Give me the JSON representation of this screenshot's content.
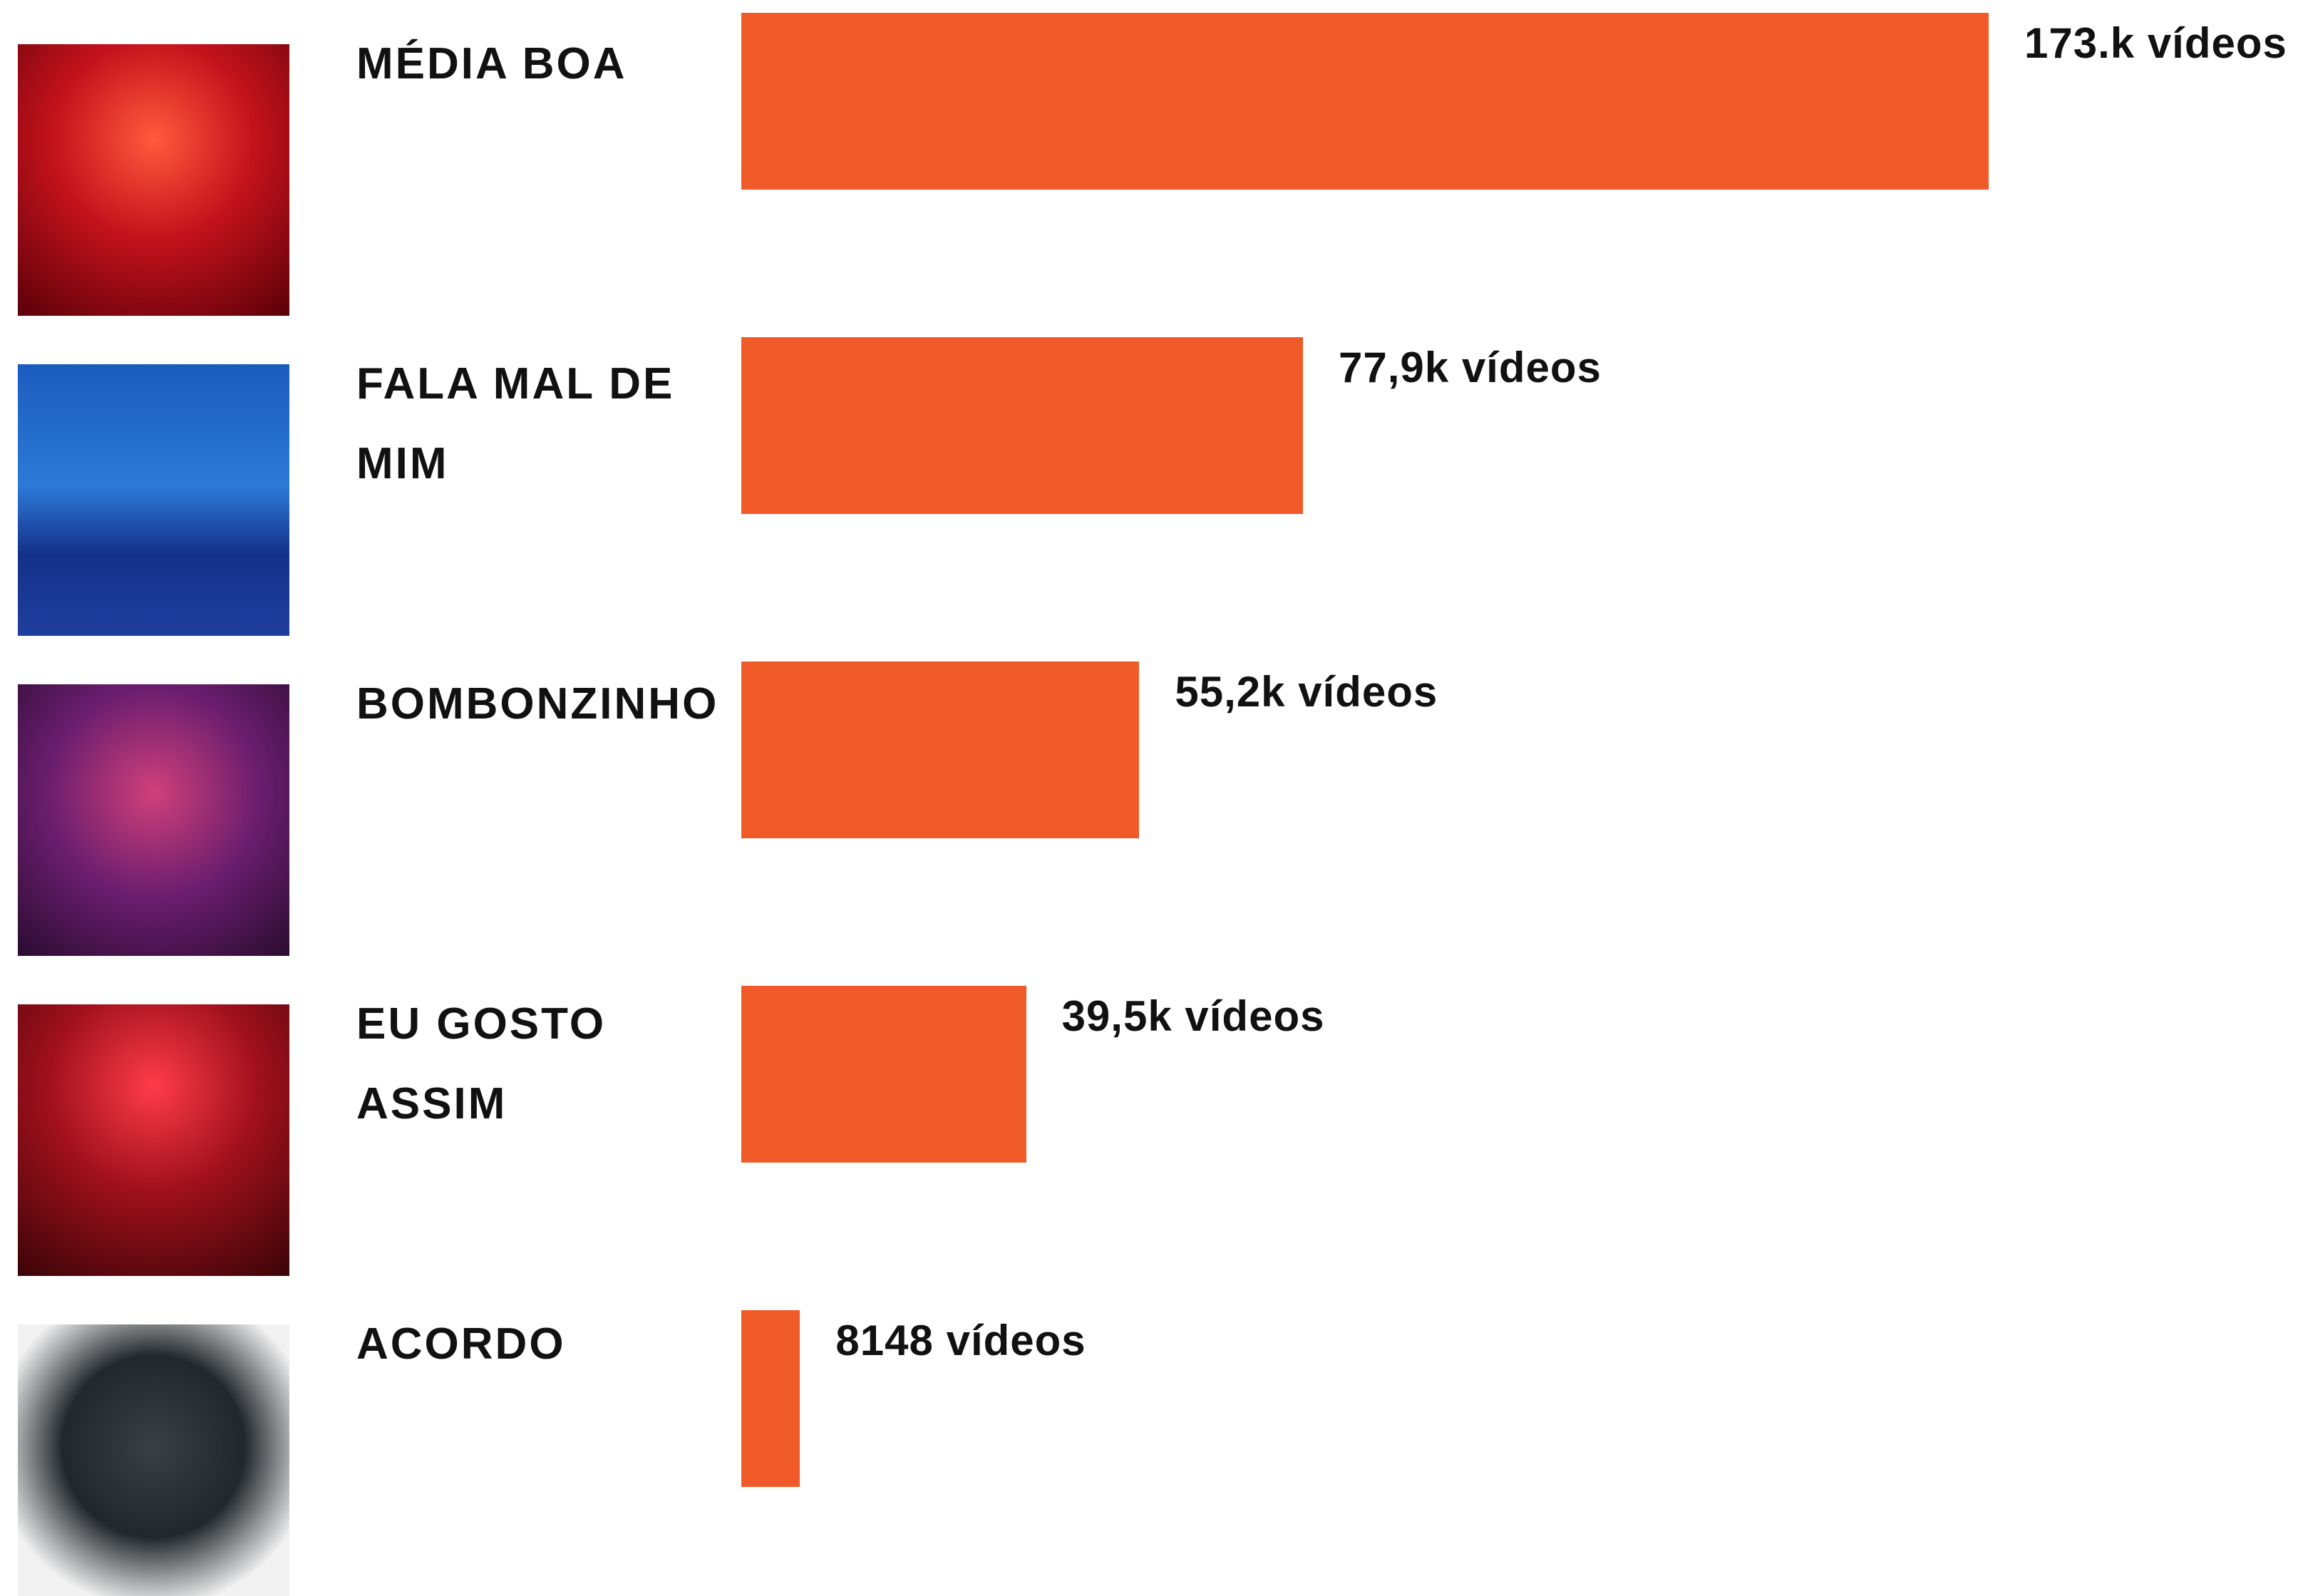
{
  "chart_data": {
    "type": "bar",
    "orientation": "horizontal",
    "categories": [
      "MÉDIA BOA",
      "FALA MAL DE MIM",
      "BOMBONZINHO",
      "EU GOSTO ASSIM",
      "ACORDO"
    ],
    "values": [
      173000,
      77900,
      55200,
      39500,
      8148
    ],
    "value_labels": [
      "173.k vídeos",
      "77,9k vídeos",
      "55,2k vídeos",
      "39,5k vídeos",
      "8148 vídeos"
    ],
    "color": "#f05a28"
  }
}
